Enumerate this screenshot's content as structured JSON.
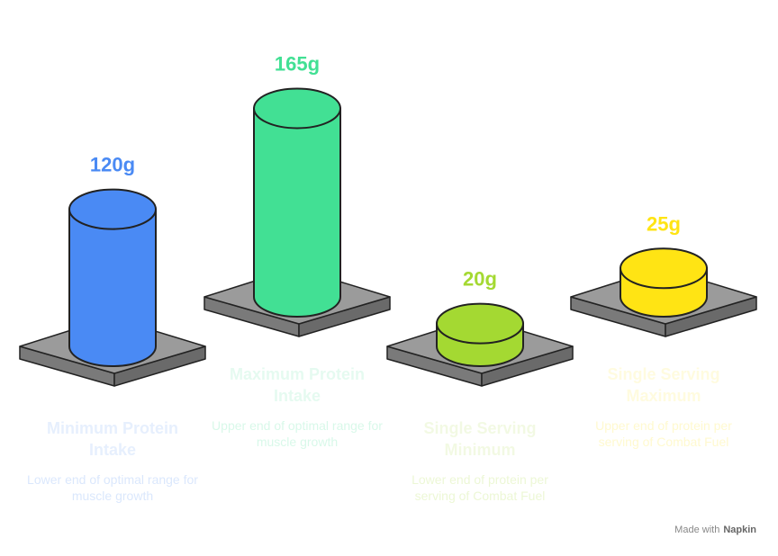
{
  "chart_data": {
    "type": "cylinder",
    "categories": [
      "Minimum Protein Intake",
      "Maximum Protein Intake",
      "Single Serving Minimum",
      "Single Serving Maximum"
    ],
    "descriptions": [
      "Lower end of optimal range for muscle growth",
      "Upper end of optimal range for muscle growth",
      "Lower end of protein per serving of Combat Fuel",
      "Upper end of protein per serving of Combat Fuel"
    ],
    "values": [
      120,
      165,
      20,
      25
    ],
    "value_labels": [
      "120g",
      "165g",
      "20g",
      "25g"
    ],
    "colors": [
      "#4a8af4",
      "#42e094",
      "#a4d932",
      "#ffe414"
    ],
    "footer": {
      "text": "Made with",
      "brand": "Napkin"
    }
  }
}
